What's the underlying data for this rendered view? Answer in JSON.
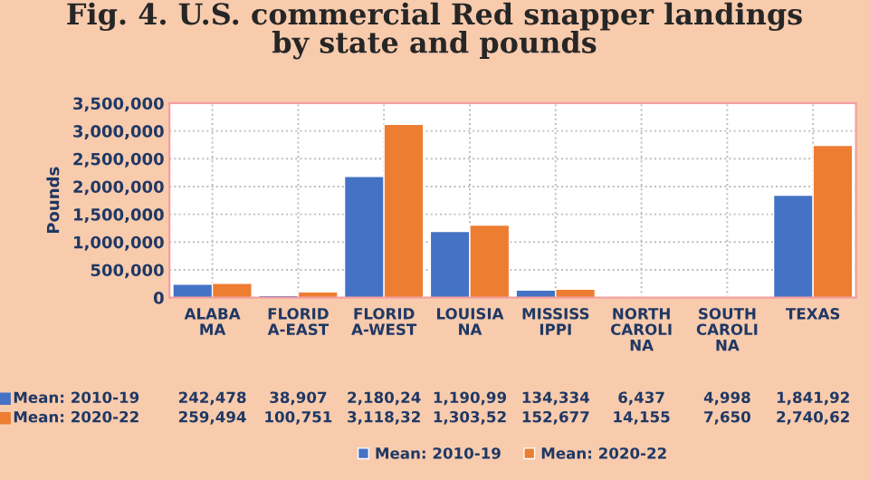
{
  "chart_data": {
    "type": "bar",
    "title": "Fig. 4. U.S. commercial Red snapper landings\nby state and pounds",
    "ylabel": "Pounds",
    "categories": [
      "ALABA\nMA",
      "FLORID\nA-EAST",
      "FLORID\nA-WEST",
      "LOUISIA\nNA",
      "MISSISS\nIPPI",
      "NORTH\nCAROLI\nNA",
      "SOUTH\nCAROLI\nNA",
      "TEXAS"
    ],
    "series": [
      {
        "name": "Mean: 2010-19",
        "color": "#4472c4",
        "values": [
          242478,
          38907,
          2180240,
          1190990,
          134334,
          6437,
          4998,
          1841920
        ],
        "value_labels": [
          "242,478",
          "38,907",
          "2,180,24",
          "1,190,99",
          "134,334",
          "6,437",
          "4,998",
          "1,841,92"
        ]
      },
      {
        "name": "Mean: 2020-22",
        "color": "#ed7d31",
        "values": [
          259494,
          100751,
          3118320,
          1303520,
          152677,
          14155,
          7650,
          2740620
        ],
        "value_labels": [
          "259,494",
          "100,751",
          "3,118,32",
          "1,303,52",
          "152,677",
          "14,155",
          "7,650",
          "2,740,62"
        ]
      }
    ],
    "ylim": [
      0,
      3500000
    ],
    "yticks": [
      {
        "value": 0,
        "label": "0"
      },
      {
        "value": 500000,
        "label": "500,000"
      },
      {
        "value": 1000000,
        "label": "1,000,000"
      },
      {
        "value": 1500000,
        "label": "1,500,000"
      },
      {
        "value": 2000000,
        "label": "2,000,000"
      },
      {
        "value": 2500000,
        "label": "2,500,000"
      },
      {
        "value": 3000000,
        "label": "3,000,000"
      },
      {
        "value": 3500000,
        "label": "3,500,000"
      }
    ],
    "grid": true,
    "legend": "bottom"
  }
}
